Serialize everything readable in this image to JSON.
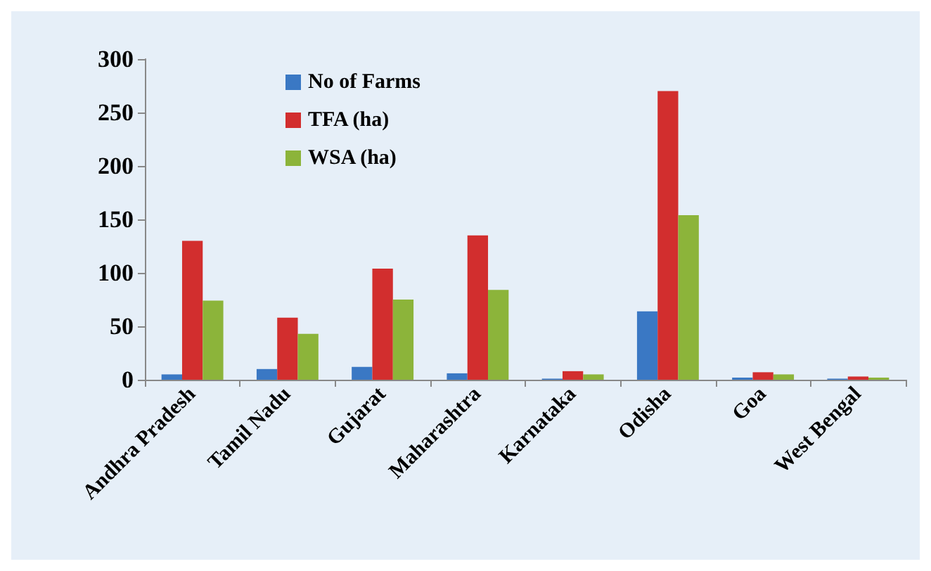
{
  "chart_data": {
    "type": "bar",
    "categories": [
      "Andhra Pradesh",
      "Tamil Nadu",
      "Gujarat",
      "Maharashtra",
      "Karnataka",
      "Odisha",
      "Goa",
      "West Bengal"
    ],
    "series": [
      {
        "name": "No of Farms",
        "color": "#3a78c4",
        "values": [
          5,
          10,
          12,
          6,
          1,
          64,
          2,
          1
        ]
      },
      {
        "name": "TFA (ha)",
        "color": "#d22e2e",
        "values": [
          130,
          58,
          104,
          135,
          8,
          270,
          7,
          3
        ]
      },
      {
        "name": "WSA (ha)",
        "color": "#8cb43a",
        "values": [
          74,
          43,
          75,
          84,
          5,
          154,
          5,
          2
        ]
      }
    ],
    "ylim": [
      0,
      300
    ],
    "yticks": [
      0,
      50,
      100,
      150,
      200,
      250,
      300
    ],
    "grid": false,
    "legend": "top left"
  }
}
